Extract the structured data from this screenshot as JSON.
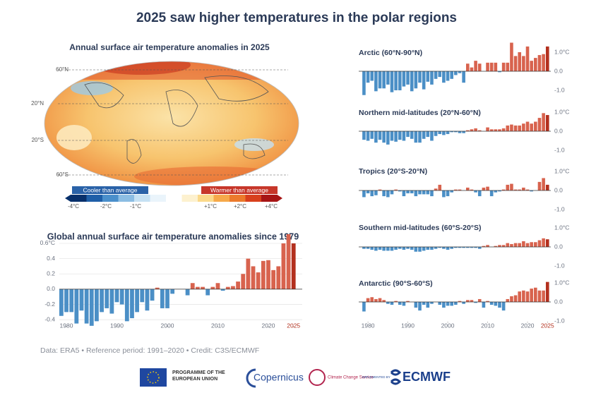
{
  "title": "2025 saw higher temperatures in the polar regions",
  "map": {
    "title": "Annual surface air temperature anomalies in 2025",
    "lat_labels": [
      "60°N",
      "20°N",
      "20°S",
      "60°S"
    ],
    "legend": {
      "cool_label": "Cooler than average",
      "warm_label": "Warmer than average",
      "ticks": [
        "-4°C",
        "-2°C",
        "-1°C",
        "+1°C",
        "+2°C",
        "+4°C"
      ]
    }
  },
  "chart_data": [
    {
      "type": "bar",
      "title": "Global annual surface air temperature anomalies since 1979",
      "x": [
        1979,
        1980,
        1981,
        1982,
        1983,
        1984,
        1985,
        1986,
        1987,
        1988,
        1989,
        1990,
        1991,
        1992,
        1993,
        1994,
        1995,
        1996,
        1997,
        1998,
        1999,
        2000,
        2001,
        2002,
        2003,
        2004,
        2005,
        2006,
        2007,
        2008,
        2009,
        2010,
        2011,
        2012,
        2013,
        2014,
        2015,
        2016,
        2017,
        2018,
        2019,
        2020,
        2021,
        2022,
        2023,
        2024,
        2025
      ],
      "values": [
        -0.35,
        -0.3,
        -0.3,
        -0.45,
        -0.28,
        -0.45,
        -0.48,
        -0.42,
        -0.3,
        -0.25,
        -0.32,
        -0.17,
        -0.2,
        -0.42,
        -0.38,
        -0.3,
        -0.17,
        -0.28,
        -0.15,
        0.02,
        -0.25,
        -0.25,
        -0.06,
        0.0,
        0.0,
        -0.08,
        0.08,
        0.03,
        0.03,
        -0.08,
        0.03,
        0.08,
        -0.02,
        0.03,
        0.04,
        0.1,
        0.2,
        0.4,
        0.3,
        0.22,
        0.37,
        0.38,
        0.25,
        0.3,
        0.6,
        0.72,
        0.6
      ],
      "xlim": [
        1978.5,
        2025.5
      ],
      "xticks": [
        1980,
        1990,
        2000,
        2010,
        2020,
        2025
      ],
      "ylim": [
        -0.5,
        0.72
      ],
      "yticks": [
        {
          "value": 0.6,
          "label": "0.6°C"
        },
        0.4,
        0.2,
        {
          "value": 0,
          "label": "0.0"
        },
        -0.2,
        -0.4
      ],
      "grid": true,
      "colors": {
        "negative": "#4b8fc6",
        "positive": "#d8634e",
        "latest": "#b3301e"
      }
    },
    {
      "type": "bar",
      "title": "Arctic (60°N-90°N)",
      "x": [
        1979,
        1980,
        1981,
        1982,
        1983,
        1984,
        1985,
        1986,
        1987,
        1988,
        1989,
        1990,
        1991,
        1992,
        1993,
        1994,
        1995,
        1996,
        1997,
        1998,
        1999,
        2000,
        2001,
        2002,
        2003,
        2004,
        2005,
        2006,
        2007,
        2008,
        2009,
        2010,
        2011,
        2012,
        2013,
        2014,
        2015,
        2016,
        2017,
        2018,
        2019,
        2020,
        2021,
        2022,
        2023,
        2024,
        2025
      ],
      "values": [
        -1.25,
        -0.6,
        -0.5,
        -1.05,
        -0.9,
        -0.9,
        -0.7,
        -1.1,
        -1.0,
        -1.0,
        -0.8,
        -0.7,
        -1.05,
        -0.9,
        -0.6,
        -0.95,
        -0.55,
        -0.7,
        -0.4,
        -0.3,
        -0.6,
        -0.5,
        -0.4,
        -0.2,
        -0.1,
        -0.6,
        0.4,
        0.2,
        0.55,
        0.4,
        0.0,
        0.45,
        0.45,
        0.45,
        -0.05,
        0.45,
        0.45,
        1.5,
        0.8,
        1.0,
        0.8,
        1.3,
        0.55,
        0.7,
        0.85,
        0.9,
        1.3
      ],
      "xlim": [
        1978.5,
        2025.5
      ],
      "ylim": [
        -1.8,
        1.5
      ],
      "yticks": [
        {
          "value": 1,
          "label": "1.0°C"
        },
        {
          "value": 0,
          "label": "0.0"
        },
        {
          "value": -1,
          "label": "-1.0"
        }
      ],
      "grid": false,
      "colors": {
        "negative": "#4b8fc6",
        "positive": "#d8634e",
        "latest": "#b3301e"
      }
    },
    {
      "type": "bar",
      "title": "Northern mid-latitudes (20°N-60°N)",
      "x": [
        1979,
        1980,
        1981,
        1982,
        1983,
        1984,
        1985,
        1986,
        1987,
        1988,
        1989,
        1990,
        1991,
        1992,
        1993,
        1994,
        1995,
        1996,
        1997,
        1998,
        1999,
        2000,
        2001,
        2002,
        2003,
        2004,
        2005,
        2006,
        2007,
        2008,
        2009,
        2010,
        2011,
        2012,
        2013,
        2014,
        2015,
        2016,
        2017,
        2018,
        2019,
        2020,
        2021,
        2022,
        2023,
        2024,
        2025
      ],
      "values": [
        -0.45,
        -0.5,
        -0.4,
        -0.6,
        -0.45,
        -0.6,
        -0.7,
        -0.5,
        -0.55,
        -0.45,
        -0.5,
        -0.3,
        -0.4,
        -0.6,
        -0.6,
        -0.4,
        -0.3,
        -0.5,
        -0.25,
        -0.15,
        -0.2,
        -0.15,
        -0.05,
        -0.05,
        -0.1,
        -0.1,
        0.05,
        0.1,
        0.15,
        0.05,
        0.0,
        0.2,
        0.1,
        0.1,
        0.1,
        0.15,
        0.3,
        0.35,
        0.3,
        0.3,
        0.4,
        0.5,
        0.4,
        0.5,
        0.7,
        0.95,
        0.85
      ],
      "xlim": [
        1978.5,
        2025.5
      ],
      "ylim": [
        -1.1,
        1.2
      ],
      "yticks": [
        {
          "value": 1,
          "label": "1.0°C"
        },
        {
          "value": 0,
          "label": "0.0"
        },
        {
          "value": -1,
          "label": "-1.0"
        }
      ],
      "grid": false,
      "colors": {
        "negative": "#4b8fc6",
        "positive": "#d8634e",
        "latest": "#b3301e"
      }
    },
    {
      "type": "bar",
      "title": "Tropics (20°S-20°N)",
      "x": [
        1979,
        1980,
        1981,
        1982,
        1983,
        1984,
        1985,
        1986,
        1987,
        1988,
        1989,
        1990,
        1991,
        1992,
        1993,
        1994,
        1995,
        1996,
        1997,
        1998,
        1999,
        2000,
        2001,
        2002,
        2003,
        2004,
        2005,
        2006,
        2007,
        2008,
        2009,
        2010,
        2011,
        2012,
        2013,
        2014,
        2015,
        2016,
        2017,
        2018,
        2019,
        2020,
        2021,
        2022,
        2023,
        2024,
        2025
      ],
      "values": [
        -0.35,
        -0.15,
        -0.3,
        -0.25,
        0.05,
        -0.3,
        -0.35,
        -0.2,
        0.05,
        -0.05,
        -0.3,
        -0.15,
        -0.15,
        -0.3,
        -0.2,
        -0.2,
        -0.2,
        -0.3,
        0.1,
        0.3,
        -0.35,
        -0.3,
        -0.1,
        0.05,
        0.05,
        0.0,
        0.15,
        0.05,
        -0.1,
        -0.3,
        0.15,
        0.2,
        -0.3,
        -0.1,
        -0.05,
        0.05,
        0.3,
        0.35,
        0.05,
        0.05,
        0.15,
        0.05,
        -0.05,
        0.0,
        0.45,
        0.65,
        0.3
      ],
      "xlim": [
        1978.5,
        2025.5
      ],
      "ylim": [
        -1.1,
        1.2
      ],
      "yticks": [
        {
          "value": 1,
          "label": "1.0°C"
        },
        {
          "value": 0,
          "label": "0.0"
        },
        {
          "value": -1,
          "label": "-1.0"
        }
      ],
      "grid": false,
      "colors": {
        "negative": "#4b8fc6",
        "positive": "#d8634e",
        "latest": "#b3301e"
      }
    },
    {
      "type": "bar",
      "title": "Southern mid-latitudes (60°S-20°S)",
      "x": [
        1979,
        1980,
        1981,
        1982,
        1983,
        1984,
        1985,
        1986,
        1987,
        1988,
        1989,
        1990,
        1991,
        1992,
        1993,
        1994,
        1995,
        1996,
        1997,
        1998,
        1999,
        2000,
        2001,
        2002,
        2003,
        2004,
        2005,
        2006,
        2007,
        2008,
        2009,
        2010,
        2011,
        2012,
        2013,
        2014,
        2015,
        2016,
        2017,
        2018,
        2019,
        2020,
        2021,
        2022,
        2023,
        2024,
        2025
      ],
      "values": [
        -0.1,
        -0.1,
        -0.15,
        -0.2,
        -0.15,
        -0.2,
        -0.2,
        -0.2,
        -0.15,
        -0.1,
        -0.15,
        -0.1,
        -0.15,
        -0.25,
        -0.25,
        -0.2,
        -0.15,
        -0.15,
        -0.1,
        -0.05,
        -0.1,
        -0.15,
        -0.1,
        -0.05,
        -0.05,
        -0.05,
        -0.05,
        -0.05,
        -0.05,
        -0.1,
        0.05,
        0.1,
        0.0,
        0.05,
        0.1,
        0.1,
        0.2,
        0.15,
        0.2,
        0.2,
        0.3,
        0.2,
        0.25,
        0.25,
        0.35,
        0.45,
        0.4
      ],
      "xlim": [
        1978.5,
        2025.5
      ],
      "ylim": [
        -1.1,
        1.2
      ],
      "yticks": [
        {
          "value": 1,
          "label": "1.0°C"
        },
        {
          "value": 0,
          "label": "0.0"
        },
        {
          "value": -1,
          "label": "-1.0"
        }
      ],
      "grid": false,
      "colors": {
        "negative": "#4b8fc6",
        "positive": "#d8634e",
        "latest": "#b3301e"
      }
    },
    {
      "type": "bar",
      "title": "Antarctic (90°S-60°S)",
      "x": [
        1979,
        1980,
        1981,
        1982,
        1983,
        1984,
        1985,
        1986,
        1987,
        1988,
        1989,
        1990,
        1991,
        1992,
        1993,
        1994,
        1995,
        1996,
        1997,
        1998,
        1999,
        2000,
        2001,
        2002,
        2003,
        2004,
        2005,
        2006,
        2007,
        2008,
        2009,
        2010,
        2011,
        2012,
        2013,
        2014,
        2015,
        2016,
        2017,
        2018,
        2019,
        2020,
        2021,
        2022,
        2023,
        2024,
        2025
      ],
      "values": [
        -0.5,
        0.2,
        0.25,
        0.15,
        0.2,
        0.1,
        -0.1,
        -0.15,
        0.05,
        -0.15,
        -0.2,
        0.05,
        0.0,
        -0.3,
        -0.45,
        -0.15,
        -0.3,
        -0.1,
        0.0,
        -0.15,
        -0.3,
        -0.2,
        -0.2,
        -0.15,
        0.05,
        -0.1,
        0.1,
        0.1,
        -0.05,
        0.15,
        -0.3,
        0.05,
        -0.15,
        -0.2,
        -0.3,
        -0.45,
        0.15,
        0.3,
        0.35,
        0.55,
        0.6,
        0.55,
        0.7,
        0.75,
        0.6,
        0.6,
        1.05
      ],
      "xlim": [
        1978.5,
        2025.5
      ],
      "xticks": [
        1980,
        1990,
        2000,
        2010,
        2020,
        2025
      ],
      "ylim": [
        -1.1,
        1.2
      ],
      "yticks": [
        {
          "value": 1,
          "label": "1.0°C"
        },
        {
          "value": 0,
          "label": "0.0"
        },
        {
          "value": -1,
          "label": "-1.0"
        }
      ],
      "grid": false,
      "colors": {
        "negative": "#4b8fc6",
        "positive": "#d8634e",
        "latest": "#b3301e"
      }
    }
  ],
  "footer": {
    "source": "Data: ERA5 • Reference period: 1991–2020 • Credit: C3S/ECMWF",
    "eu": "PROGRAMME OF THE EUROPEAN UNION",
    "copernicus": "Copernicus",
    "c3s": "Climate Change Service",
    "implemented": "IMPLEMENTED BY",
    "ecmwf": "ECMWF"
  }
}
